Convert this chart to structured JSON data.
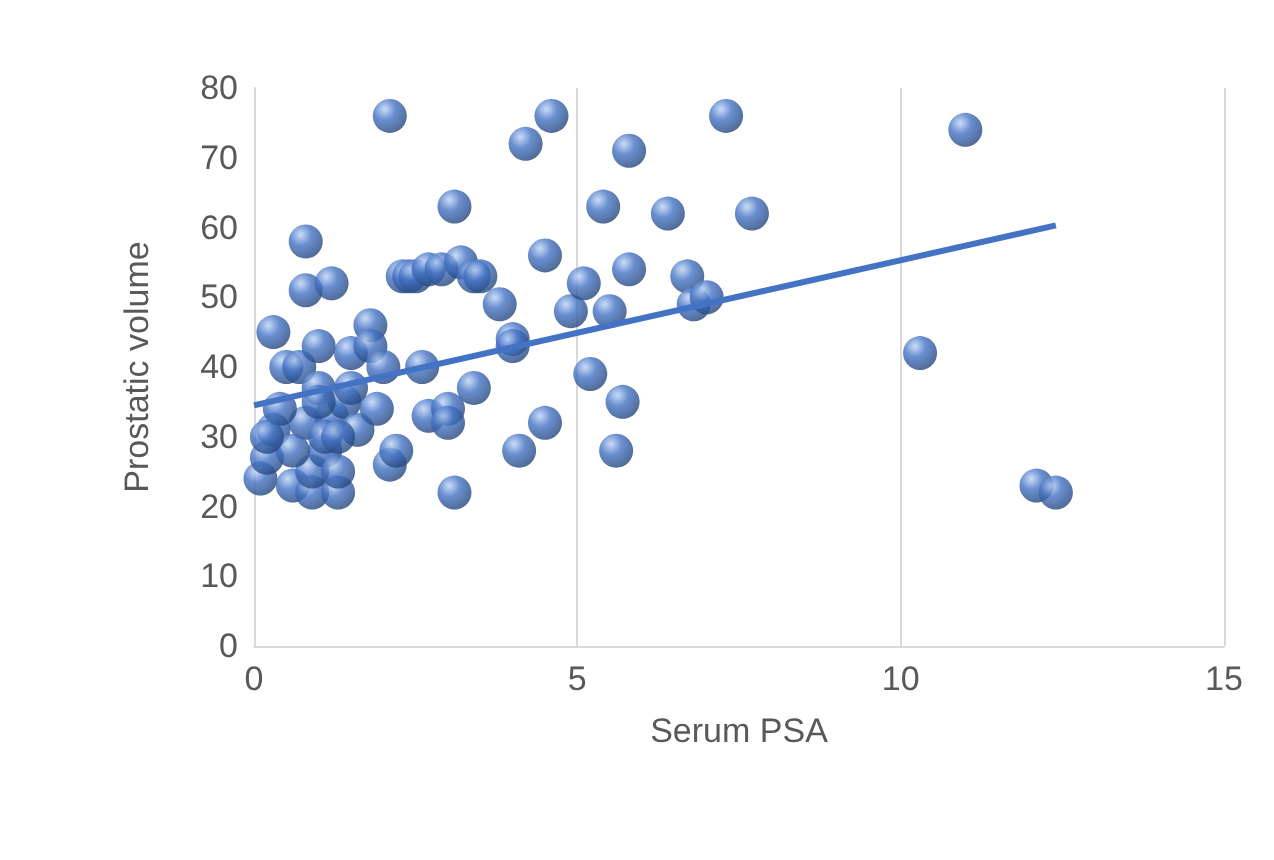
{
  "chart_data": {
    "type": "scatter",
    "xlabel": "Serum PSA",
    "ylabel": "Prostatic volume",
    "xlim": [
      0,
      15
    ],
    "xticks": [
      0,
      5,
      10,
      15
    ],
    "ylim": [
      0,
      80
    ],
    "yticks": [
      0,
      10,
      20,
      30,
      40,
      50,
      60,
      70,
      80
    ],
    "grid": "x",
    "marker": "circle",
    "series": [
      {
        "color": "#4472c4",
        "x": [
          0.1,
          0.2,
          0.3,
          0.3,
          0.5,
          0.6,
          0.7,
          0.8,
          0.8,
          0.8,
          0.9,
          0.9,
          1.0,
          1.0,
          1.1,
          1.2,
          1.2,
          1.3,
          1.3,
          1.4,
          1.5,
          1.6,
          1.8,
          1.8,
          1.9,
          2.0,
          2.1,
          2.1,
          2.2,
          2.3,
          2.4,
          2.5,
          2.6,
          2.7,
          2.7,
          2.9,
          3.0,
          3.0,
          3.1,
          3.1,
          3.2,
          3.4,
          3.4,
          3.5,
          3.8,
          4.0,
          4.0,
          4.1,
          4.2,
          4.5,
          4.5,
          4.6,
          4.9,
          5.1,
          5.2,
          5.4,
          5.5,
          5.6,
          5.7,
          5.8,
          5.8,
          6.4,
          6.7,
          6.8,
          7.0,
          7.3,
          7.7,
          10.3,
          11.0,
          12.1,
          12.4,
          0.4,
          0.6,
          1.1,
          1.3,
          1.5,
          0.2,
          1.0
        ],
        "values": [
          24,
          27,
          31,
          45,
          40,
          23,
          40,
          32,
          58,
          51,
          22,
          25,
          43,
          37,
          28,
          33,
          52,
          22,
          25,
          35,
          42,
          31,
          46,
          43,
          34,
          40,
          26,
          76,
          28,
          53,
          53,
          53,
          40,
          54,
          33,
          54,
          34,
          32,
          22,
          63,
          55,
          53,
          37,
          53,
          49,
          44,
          43,
          28,
          72,
          56,
          32,
          76,
          48,
          52,
          39,
          63,
          48,
          28,
          35,
          54,
          71,
          62,
          53,
          49,
          50,
          76,
          62,
          42,
          74,
          23,
          22,
          34,
          28,
          30,
          30,
          37,
          30,
          35
        ]
      },
      {
        "type": "line",
        "color": "#4472c4",
        "marker": "none",
        "x": [
          0,
          12.4
        ],
        "values": [
          34.5,
          60.3
        ]
      }
    ]
  }
}
